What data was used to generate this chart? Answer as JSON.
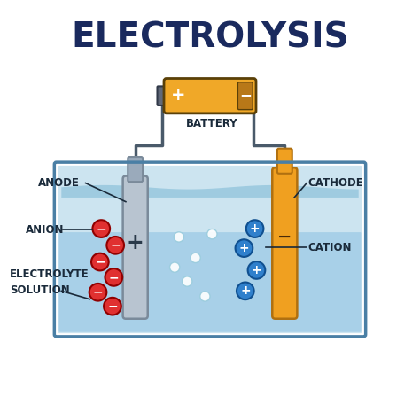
{
  "title": "ELECTROLYSIS",
  "title_fontsize": 28,
  "title_color": "#1a2a5e",
  "bg_color": "#ffffff",
  "labels": {
    "anode": "ANODE",
    "cathode": "CATHODE",
    "anion": "ANION",
    "cation": "CATION",
    "electrolyte": "ELECTROLYTE\nSOLUTION",
    "battery": "BATTERY"
  },
  "colors": {
    "tank_border": "#4a7fa5",
    "tank_bg": "#cce4f0",
    "tank_bg2": "#a8d0e8",
    "water_surface": "#7ab8d4",
    "anode_body": "#b8c4d0",
    "anode_tip": "#7a8a9a",
    "anode_connector": "#9aaabb",
    "cathode_body": "#f0a020",
    "cathode_tip": "#b07010",
    "wire": "#4a5a6a",
    "battery_body": "#f0a828",
    "battery_cap_left": "#606878",
    "battery_end_right": "#b87818",
    "anion_fill": "#e03030",
    "anion_border": "#900000",
    "cation_fill": "#3080cc",
    "cation_border": "#105090",
    "bubble": "#ffffff",
    "bubble_border": "#99ccdd",
    "label_color": "#1a2a3a"
  }
}
